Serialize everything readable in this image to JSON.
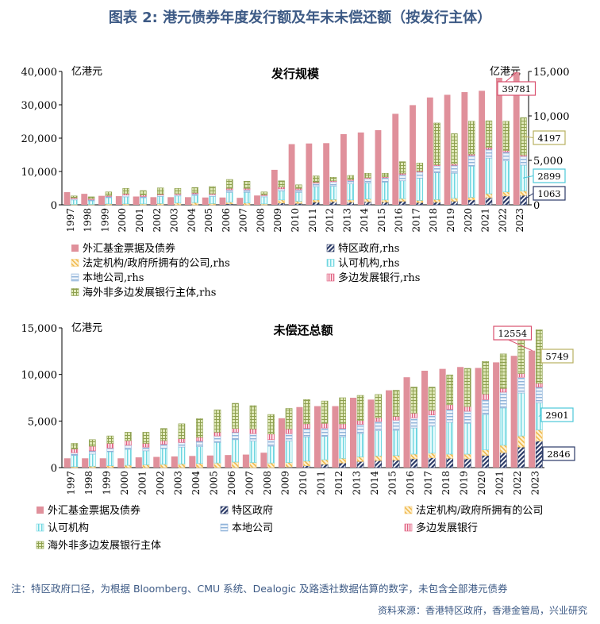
{
  "title": "图表 2:  港元债券年度发行额及年末未偿还额（按发行主体）",
  "footnote": "注：特区政府口径，为根据 Bloomberg、CMU 系统、Dealogic 及路透社数据估算的数字，未包含全部港元债券",
  "source": "资料来源：香港特区政府，香港金管局，兴业研究",
  "colors": {
    "fx_fund": "#e0909b",
    "sar_gov": "#2b3a67",
    "statutory": "#f3c870",
    "authorized": "#6fd6e0",
    "local": "#8fb3d9",
    "multilateral": "#e06080",
    "overseas": "#b5c780",
    "callout_red": "#d9506f",
    "callout_yellow": "#b8b060",
    "callout_cyan": "#4cc8d8",
    "callout_navy": "#2b3a67"
  },
  "chart_data": [
    {
      "type": "bar",
      "title": "发行规模",
      "ylabel_left": "亿港元",
      "ylabel_right": "亿港元",
      "ylim_left": [
        0,
        40000
      ],
      "ylim_right": [
        0,
        15000
      ],
      "yticks_left": [
        "0",
        "10,000",
        "20,000",
        "30,000",
        "40,000"
      ],
      "yticks_right": [
        "0",
        "5,000",
        "10,000",
        "15,000"
      ],
      "categories": [
        "1997",
        "1998",
        "1999",
        "2000",
        "2001",
        "2002",
        "2003",
        "2004",
        "2005",
        "2006",
        "2007",
        "2008",
        "2009",
        "2010",
        "2011",
        "2012",
        "2013",
        "2014",
        "2015",
        "2016",
        "2017",
        "2018",
        "2019",
        "2020",
        "2021",
        "2022",
        "2023"
      ],
      "left_series": {
        "name": "外汇基金票据及债券",
        "key": "fx_fund",
        "values": [
          3800,
          3300,
          2700,
          2600,
          2500,
          2300,
          2300,
          2300,
          2200,
          2200,
          2100,
          2800,
          10500,
          18200,
          18400,
          18500,
          21200,
          21700,
          22400,
          27300,
          29900,
          32200,
          33000,
          33800,
          34200,
          38100,
          39781
        ]
      },
      "right_series": [
        {
          "name": "特区政府, rhs",
          "legend": "特区政府,rhs",
          "key": "sar_gov",
          "values": [
            0,
            0,
            0,
            0,
            0,
            0,
            0,
            0,
            0,
            100,
            0,
            0,
            200,
            150,
            300,
            350,
            300,
            350,
            300,
            400,
            250,
            300,
            400,
            550,
            800,
            1000,
            1063
          ]
        },
        {
          "name": "法定机构/政府所拥有的公司, rhs",
          "legend": "法定机构/政府所拥有的公司,rhs",
          "key": "statutory",
          "values": [
            50,
            50,
            100,
            100,
            100,
            150,
            200,
            250,
            150,
            200,
            200,
            100,
            350,
            250,
            250,
            250,
            250,
            300,
            250,
            300,
            250,
            300,
            350,
            300,
            450,
            450,
            500
          ]
        },
        {
          "name": "认可机构, rhs",
          "legend": "认可机构,rhs",
          "key": "authorized",
          "values": [
            500,
            400,
            700,
            800,
            700,
            800,
            800,
            800,
            800,
            1100,
            1200,
            800,
            1000,
            1000,
            1500,
            1500,
            1800,
            1800,
            2000,
            2000,
            2500,
            3000,
            2800,
            3500,
            4000,
            3500,
            2899
          ]
        },
        {
          "name": "本地公司, rhs",
          "legend": "本地公司,rhs",
          "key": "local",
          "values": [
            150,
            150,
            150,
            200,
            150,
            150,
            150,
            200,
            200,
            300,
            300,
            150,
            250,
            300,
            400,
            500,
            400,
            500,
            500,
            700,
            700,
            800,
            900,
            1200,
            1000,
            1000,
            1000
          ]
        },
        {
          "name": "多边发展银行, rhs",
          "legend": "多边发展银行,rhs",
          "key": "multilateral",
          "values": [
            100,
            100,
            100,
            150,
            150,
            100,
            100,
            100,
            100,
            150,
            150,
            100,
            200,
            150,
            100,
            100,
            100,
            100,
            100,
            150,
            100,
            100,
            150,
            150,
            200,
            150,
            150
          ]
        },
        {
          "name": "海外非多边发展银行主体, rhs",
          "legend": "海外非多边发展银行主体,rhs",
          "key": "overseas",
          "values": [
            200,
            200,
            400,
            600,
            500,
            700,
            600,
            600,
            800,
            1000,
            800,
            300,
            700,
            400,
            700,
            400,
            450,
            500,
            400,
            1300,
            900,
            4700,
            3400,
            3700,
            3000,
            3300,
            4197
          ]
        }
      ],
      "callouts": [
        {
          "label": "39781",
          "color": "callout_red"
        },
        {
          "label": "4197",
          "color": "callout_yellow"
        },
        {
          "label": "2899",
          "color": "callout_cyan"
        },
        {
          "label": "1063",
          "color": "callout_navy"
        }
      ]
    },
    {
      "type": "bar",
      "title": "未偿还总额",
      "ylabel_left": "亿港元",
      "ylim": [
        0,
        15000
      ],
      "yticks": [
        "0",
        "5,000",
        "10,000",
        "15,000"
      ],
      "categories": [
        "1997",
        "1998",
        "1999",
        "2000",
        "2001",
        "2002",
        "2003",
        "2004",
        "2005",
        "2006",
        "2007",
        "2008",
        "2009",
        "2010",
        "2011",
        "2012",
        "2013",
        "2014",
        "2015",
        "2016",
        "2017",
        "2018",
        "2019",
        "2020",
        "2021",
        "2022",
        "2023"
      ],
      "series": [
        {
          "name": "外汇基金票据及债券",
          "key": "fx_fund",
          "mode": "solo",
          "values": [
            1000,
            1000,
            1000,
            1000,
            1100,
            1150,
            1200,
            1250,
            1300,
            1350,
            1400,
            1600,
            5300,
            6500,
            6600,
            6600,
            7500,
            7300,
            8300,
            9700,
            10400,
            10600,
            10800,
            10700,
            11300,
            12000,
            12554
          ]
        },
        {
          "name": "特区政府",
          "key": "sar_gov",
          "mode": "stack",
          "values": [
            0,
            0,
            0,
            0,
            0,
            0,
            0,
            0,
            0,
            0,
            0,
            0,
            50,
            200,
            350,
            500,
            650,
            750,
            800,
            950,
            1050,
            1000,
            950,
            1300,
            1600,
            2200,
            2846
          ]
        },
        {
          "name": "法定机构/政府所拥有的公司",
          "key": "statutory",
          "mode": "stack",
          "values": [
            100,
            150,
            200,
            250,
            300,
            350,
            400,
            450,
            500,
            600,
            550,
            500,
            500,
            500,
            500,
            500,
            500,
            500,
            500,
            500,
            500,
            450,
            500,
            600,
            800,
            1200,
            1200
          ]
        },
        {
          "name": "认可机构",
          "key": "authorized",
          "mode": "stack",
          "values": [
            1200,
            1300,
            1500,
            1700,
            1500,
            1700,
            1800,
            1800,
            2200,
            2400,
            2300,
            1800,
            2300,
            2600,
            2500,
            2300,
            2500,
            2700,
            2700,
            2800,
            2900,
            3400,
            3300,
            3800,
            4000,
            4600,
            2901
          ]
        },
        {
          "name": "本地公司",
          "key": "local",
          "mode": "stack",
          "values": [
            300,
            350,
            400,
            450,
            400,
            450,
            500,
            600,
            700,
            800,
            800,
            700,
            800,
            900,
            900,
            900,
            1000,
            1000,
            1100,
            1100,
            1200,
            1400,
            1300,
            1600,
            1700,
            1700,
            1700
          ]
        },
        {
          "name": "多边发展银行",
          "key": "multilateral",
          "mode": "stack",
          "values": [
            400,
            500,
            500,
            500,
            400,
            400,
            400,
            400,
            400,
            400,
            500,
            600,
            500,
            500,
            500,
            500,
            400,
            400,
            400,
            500,
            500,
            500,
            500,
            600,
            400,
            400,
            400
          ]
        },
        {
          "name": "海外非多边发展银行主体",
          "key": "overseas",
          "mode": "stack",
          "values": [
            600,
            700,
            800,
            900,
            1200,
            1300,
            1600,
            2000,
            2400,
            2700,
            2500,
            2100,
            2200,
            2600,
            2400,
            2800,
            2700,
            2500,
            2800,
            2800,
            2500,
            3200,
            4100,
            3500,
            3700,
            4400,
            5749
          ]
        }
      ],
      "callouts": [
        {
          "label": "12554",
          "color": "callout_red"
        },
        {
          "label": "5749",
          "color": "callout_yellow"
        },
        {
          "label": "2901",
          "color": "callout_cyan"
        },
        {
          "label": "2846",
          "color": "callout_navy"
        }
      ]
    }
  ]
}
